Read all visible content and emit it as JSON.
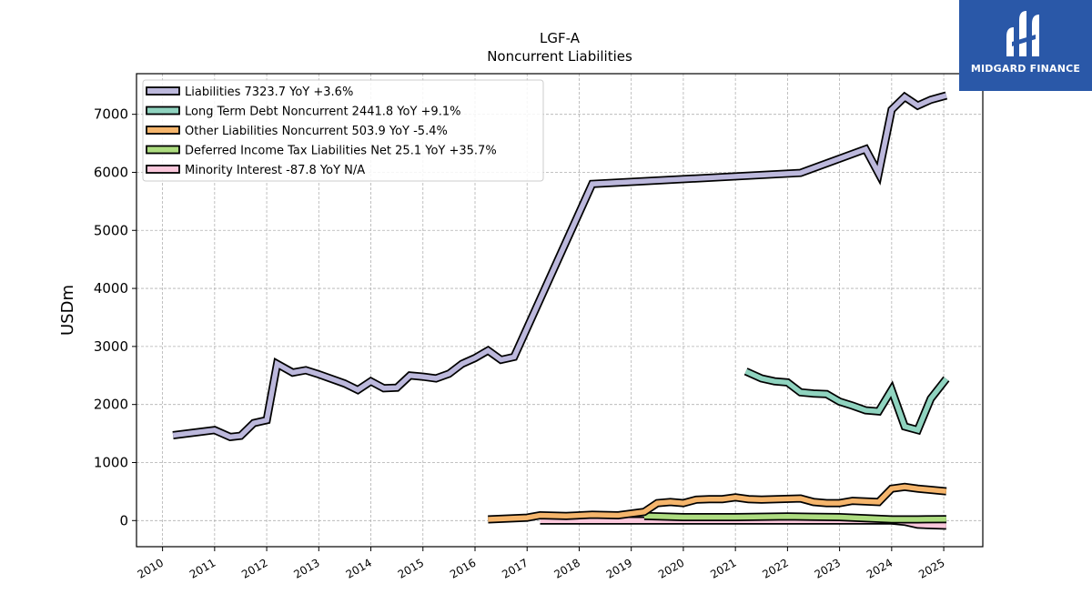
{
  "chart_data": {
    "type": "line",
    "title": "LGF-A",
    "subtitle": "Noncurrent  Liabilities",
    "xlabel": "",
    "ylabel": "USDm",
    "x_ticks": [
      "2010",
      "2011",
      "2012",
      "2013",
      "2014",
      "2015",
      "2016",
      "2017",
      "2018",
      "2019",
      "2020",
      "2021",
      "2022",
      "2023",
      "2024",
      "2025"
    ],
    "y_ticks": [
      0,
      1000,
      2000,
      3000,
      4000,
      5000,
      6000,
      7000
    ],
    "xlim": [
      2009.5,
      2025.75
    ],
    "ylim": [
      -450,
      7700
    ],
    "grid": true,
    "legend_position": "upper-left",
    "series": [
      {
        "name": "Liabilities  7323.7 YoY +3.6%",
        "color": "#bcb8dc",
        "points": [
          [
            2010.2,
            1470
          ],
          [
            2011.0,
            1560
          ],
          [
            2011.3,
            1440
          ],
          [
            2011.5,
            1460
          ],
          [
            2011.75,
            1680
          ],
          [
            2012.0,
            1730
          ],
          [
            2012.2,
            2700
          ],
          [
            2012.5,
            2550
          ],
          [
            2012.75,
            2590
          ],
          [
            2013.0,
            2520
          ],
          [
            2013.5,
            2360
          ],
          [
            2013.75,
            2250
          ],
          [
            2014.0,
            2400
          ],
          [
            2014.25,
            2280
          ],
          [
            2014.5,
            2290
          ],
          [
            2014.75,
            2500
          ],
          [
            2015.0,
            2480
          ],
          [
            2015.25,
            2450
          ],
          [
            2015.5,
            2530
          ],
          [
            2015.75,
            2700
          ],
          [
            2016.0,
            2800
          ],
          [
            2016.25,
            2930
          ],
          [
            2016.5,
            2770
          ],
          [
            2016.75,
            2820
          ],
          [
            2018.25,
            5800
          ],
          [
            2022.25,
            5990
          ],
          [
            2023.5,
            6400
          ],
          [
            2023.75,
            5980
          ],
          [
            2024.0,
            7080
          ],
          [
            2024.25,
            7300
          ],
          [
            2024.5,
            7150
          ],
          [
            2024.75,
            7250
          ],
          [
            2025.05,
            7323.7
          ]
        ]
      },
      {
        "name": "Long Term Debt Noncurrent  2441.8 YoY +9.1%",
        "color": "#8fd3bf",
        "points": [
          [
            2021.2,
            2570
          ],
          [
            2021.5,
            2450
          ],
          [
            2021.75,
            2400
          ],
          [
            2022.0,
            2380
          ],
          [
            2022.25,
            2210
          ],
          [
            2022.5,
            2190
          ],
          [
            2022.75,
            2180
          ],
          [
            2023.0,
            2050
          ],
          [
            2023.25,
            1980
          ],
          [
            2023.5,
            1900
          ],
          [
            2023.75,
            1880
          ],
          [
            2024.0,
            2250
          ],
          [
            2024.25,
            1620
          ],
          [
            2024.5,
            1560
          ],
          [
            2024.75,
            2100
          ],
          [
            2025.05,
            2441.8
          ]
        ]
      },
      {
        "name": "Other Liabilities Noncurrent  503.9 YoY -5.4%",
        "color": "#f5b56c",
        "points": [
          [
            2016.25,
            20
          ],
          [
            2017.0,
            50
          ],
          [
            2017.25,
            90
          ],
          [
            2017.75,
            80
          ],
          [
            2018.25,
            100
          ],
          [
            2018.75,
            90
          ],
          [
            2019.25,
            150
          ],
          [
            2019.5,
            300
          ],
          [
            2019.75,
            320
          ],
          [
            2020.0,
            300
          ],
          [
            2020.25,
            360
          ],
          [
            2020.5,
            370
          ],
          [
            2020.75,
            370
          ],
          [
            2021.0,
            400
          ],
          [
            2021.25,
            370
          ],
          [
            2021.5,
            360
          ],
          [
            2022.25,
            380
          ],
          [
            2022.5,
            320
          ],
          [
            2022.75,
            300
          ],
          [
            2023.0,
            300
          ],
          [
            2023.25,
            340
          ],
          [
            2023.5,
            330
          ],
          [
            2023.75,
            320
          ],
          [
            2024.0,
            550
          ],
          [
            2024.25,
            580
          ],
          [
            2024.5,
            550
          ],
          [
            2025.05,
            503.9
          ]
        ]
      },
      {
        "name": "Deferred Income Tax Liabilities Net  25.1 YoY +35.7%",
        "color": "#addc80",
        "points": [
          [
            2019.25,
            80
          ],
          [
            2020.0,
            60
          ],
          [
            2021.0,
            60
          ],
          [
            2022.0,
            70
          ],
          [
            2023.0,
            60
          ],
          [
            2024.0,
            20
          ],
          [
            2024.5,
            20
          ],
          [
            2025.05,
            25.1
          ]
        ]
      },
      {
        "name": "Minority Interest  -87.8 YoY N/A",
        "color": "#fbc8dc",
        "points": [
          [
            2017.25,
            0
          ],
          [
            2018.0,
            0
          ],
          [
            2020.0,
            0
          ],
          [
            2022.0,
            0
          ],
          [
            2023.0,
            0
          ],
          [
            2024.0,
            0
          ],
          [
            2024.25,
            -20
          ],
          [
            2024.5,
            -70
          ],
          [
            2025.05,
            -87.8
          ]
        ]
      }
    ]
  },
  "logo": {
    "text": "MIDGARD FINANCE",
    "color": "#2a58a8"
  }
}
